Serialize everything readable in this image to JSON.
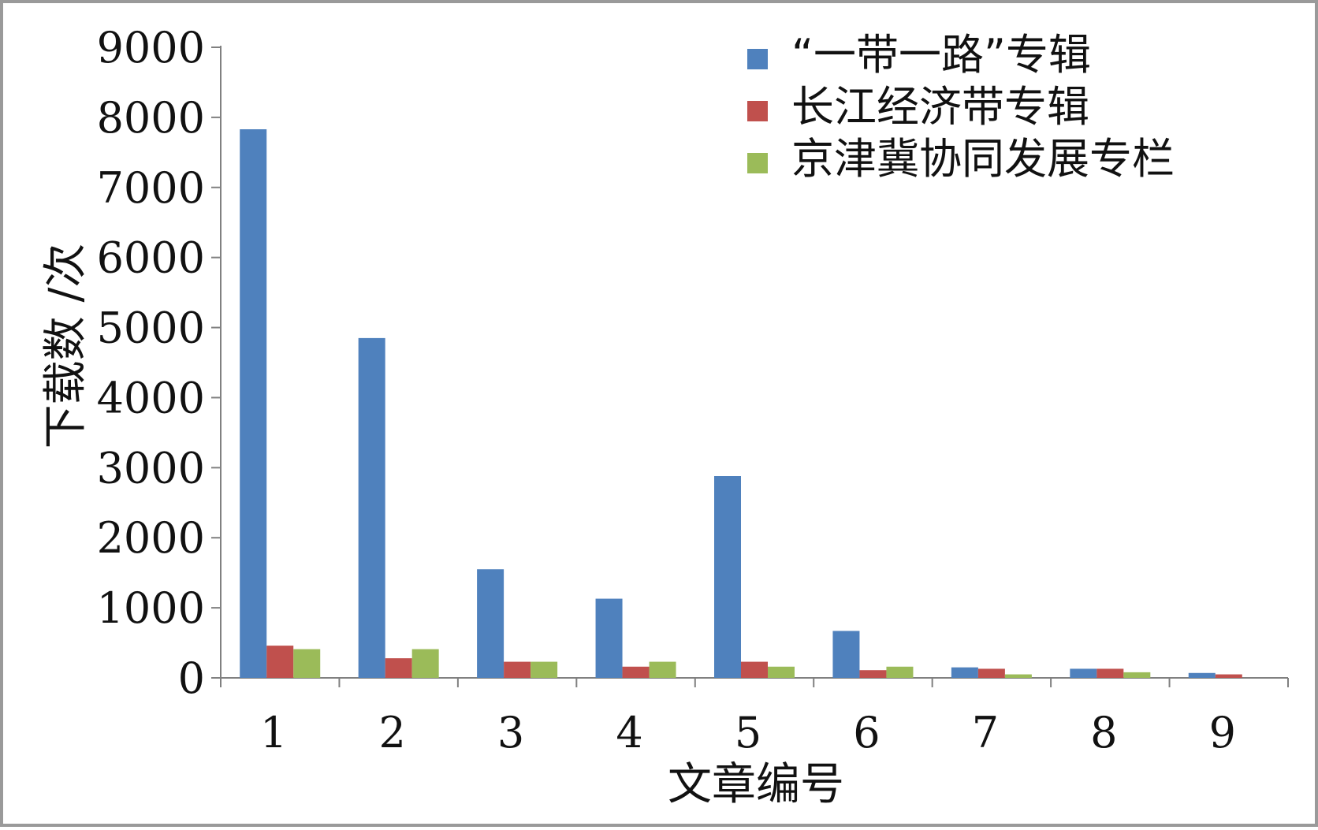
{
  "chart_data": {
    "type": "bar",
    "title": "",
    "xlabel": "文章编号",
    "ylabel": "下载数 /次",
    "ylim": [
      0,
      9000
    ],
    "y_ticks": [
      "0",
      "1000",
      "2000",
      "3000",
      "4000",
      "5000",
      "6000",
      "7000",
      "8000",
      "9000"
    ],
    "categories": [
      "1",
      "2",
      "3",
      "4",
      "5",
      "6",
      "7",
      "8",
      "9"
    ],
    "legend_position": "top-right",
    "grid": false,
    "series": [
      {
        "name": "“一带一路”专辑",
        "color": "#4f81bd",
        "values": [
          7830,
          4850,
          1550,
          1130,
          2880,
          670,
          150,
          130,
          70
        ]
      },
      {
        "name": "长江经济带专辑",
        "color": "#c0504d",
        "values": [
          460,
          280,
          230,
          160,
          230,
          110,
          130,
          130,
          50
        ]
      },
      {
        "name": "京津冀协同发展专栏",
        "color": "#9bbb59",
        "values": [
          410,
          410,
          230,
          230,
          160,
          160,
          50,
          80,
          0
        ]
      }
    ]
  }
}
